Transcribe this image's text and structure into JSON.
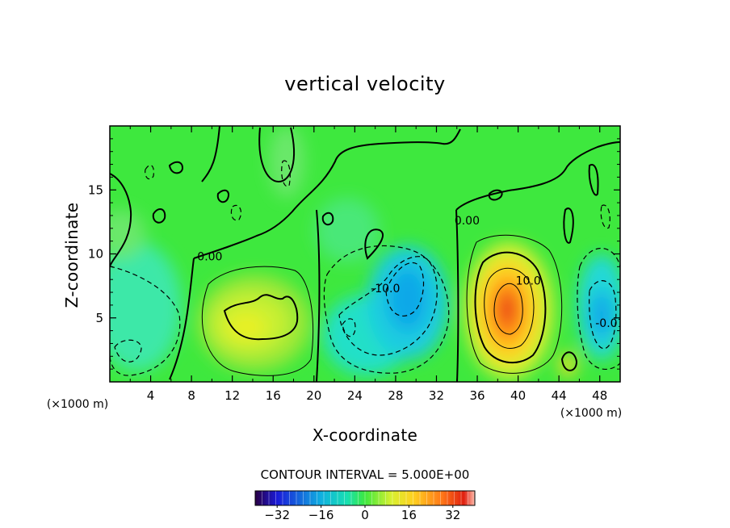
{
  "chart_data": {
    "type": "heatmap",
    "title": "vertical velocity",
    "xlabel": "X-coordinate",
    "ylabel": "Z-coordinate",
    "x_unit_label": "(×1000 m)",
    "y_unit_label": "(×1000 m)",
    "xlim": [
      0,
      50
    ],
    "ylim": [
      0,
      20
    ],
    "x_ticks": [
      4,
      8,
      12,
      16,
      20,
      24,
      28,
      32,
      36,
      40,
      44,
      48
    ],
    "y_ticks": [
      5,
      10,
      15
    ],
    "colorbar": {
      "range": [
        -40,
        40
      ],
      "ticks": [
        -32,
        -16,
        0,
        16,
        32
      ],
      "colormap": "rainbow (dark blue → cyan → green → yellow → red)"
    },
    "contour_interval_text": "CONTOUR INTERVAL = 5.000E+00",
    "contour_labels": [
      {
        "text": "0.00",
        "x": 9.8,
        "z": 9.5
      },
      {
        "text": "0.00",
        "x": 35.0,
        "z": 12.3
      },
      {
        "text": "10.0",
        "x": 41.0,
        "z": 7.6
      },
      {
        "text": "-10.0",
        "x": 27.0,
        "z": 7.0
      },
      {
        "text": "-0.01",
        "x": 49.0,
        "z": 4.3
      }
    ],
    "extrema": [
      {
        "kind": "max",
        "x": 38.5,
        "z": 5.5,
        "value": 32
      },
      {
        "kind": "min",
        "x": 29.2,
        "z": 6.5,
        "value": -15
      },
      {
        "kind": "max",
        "x": 15.5,
        "z": 4.2,
        "value": 11
      },
      {
        "kind": "min",
        "x": 22.8,
        "z": 3.8,
        "value": -10
      },
      {
        "kind": "min",
        "x": 47.5,
        "z": 4.8,
        "value": -12
      },
      {
        "kind": "max",
        "x": 44.3,
        "z": 1.5,
        "value": 12
      }
    ],
    "grid": false
  }
}
